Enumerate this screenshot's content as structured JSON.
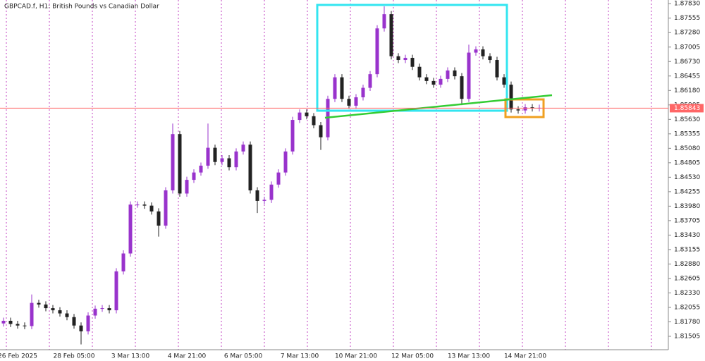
{
  "chart_data": {
    "type": "candlestick",
    "title": "GBPCAD.f, H1:  British Pounds vs Canadian Dollar",
    "categories": [
      null,
      null,
      "26 Feb 2025",
      null,
      null,
      null,
      null,
      null,
      null,
      null,
      "28 Feb 05:00",
      null,
      null,
      null,
      null,
      null,
      null,
      null,
      "3 Mar 13:00",
      null,
      null,
      null,
      null,
      null,
      null,
      null,
      "4 Mar 21:00",
      null,
      null,
      null,
      null,
      null,
      null,
      null,
      "6 Mar 05:00",
      null,
      null,
      null,
      null,
      null,
      null,
      null,
      "7 Mar 13:00",
      null,
      null,
      null,
      null,
      null,
      null,
      null,
      "10 Mar 21:00",
      null,
      null,
      null,
      null,
      null,
      null,
      null,
      "12 Mar 05:00",
      null,
      null,
      null,
      null,
      null,
      null,
      null,
      "13 Mar 13:00",
      null,
      null,
      null,
      null,
      null,
      null,
      null,
      "14 Mar 21:00",
      null,
      null
    ],
    "open": [
      1.8175,
      1.818,
      1.8174,
      1.8171,
      1.817,
      1.8214,
      1.8211,
      1.8204,
      1.82,
      1.8194,
      1.8187,
      1.8171,
      1.816,
      1.819,
      1.8203,
      1.8204,
      1.82,
      1.8274,
      1.8308,
      1.8401,
      1.8401,
      1.8399,
      1.8388,
      1.8361,
      1.8428,
      1.8535,
      1.8422,
      1.8448,
      1.8462,
      1.8475,
      1.8509,
      1.8482,
      1.8489,
      1.8472,
      1.8502,
      1.8515,
      1.8428,
      1.8408,
      1.841,
      1.8439,
      1.8462,
      1.8502,
      1.8562,
      1.8576,
      1.8569,
      1.8552,
      1.8529,
      1.8602,
      1.8643,
      1.8602,
      1.8589,
      1.8605,
      1.8623,
      1.8649,
      1.8736,
      1.8763,
      1.8683,
      1.8676,
      1.868,
      1.8663,
      1.8643,
      1.8636,
      1.8629,
      1.864,
      1.8656,
      1.8645,
      1.8602,
      1.869,
      1.8696,
      1.8683,
      1.8676,
      1.8643,
      1.8629,
      1.8582,
      1.858,
      1.8586,
      1.8584
    ],
    "high": [
      1.8186,
      1.8186,
      1.818,
      1.8177,
      1.823,
      1.822,
      1.8217,
      1.821,
      1.8206,
      1.82,
      1.8193,
      1.8177,
      1.8196,
      1.8209,
      1.821,
      1.821,
      1.828,
      1.8314,
      1.8407,
      1.8407,
      1.8407,
      1.8405,
      1.8394,
      1.8434,
      1.8555,
      1.8541,
      1.8454,
      1.8468,
      1.8481,
      1.8555,
      1.8515,
      1.8495,
      1.8495,
      1.8508,
      1.8521,
      1.8521,
      1.8434,
      1.8416,
      1.8445,
      1.8468,
      1.8508,
      1.8568,
      1.8582,
      1.8582,
      1.8575,
      1.8558,
      1.8608,
      1.8649,
      1.8649,
      1.8608,
      1.8611,
      1.8629,
      1.8655,
      1.8742,
      1.8778,
      1.8769,
      1.8689,
      1.8686,
      1.8686,
      1.8669,
      1.8649,
      1.8642,
      1.8646,
      1.8662,
      1.8662,
      1.8651,
      1.8705,
      1.8702,
      1.8702,
      1.8689,
      1.8682,
      1.8649,
      1.8635,
      1.8588,
      1.8592,
      1.8592,
      1.8591
    ],
    "low": [
      1.8169,
      1.8168,
      1.8165,
      1.8164,
      1.8164,
      1.8205,
      1.8198,
      1.8194,
      1.8188,
      1.8181,
      1.8165,
      1.8135,
      1.8154,
      1.8184,
      1.8197,
      1.8194,
      1.8194,
      1.8268,
      1.8302,
      1.8395,
      1.8393,
      1.8382,
      1.834,
      1.8355,
      1.8422,
      1.8416,
      1.8416,
      1.8442,
      1.8456,
      1.8469,
      1.8476,
      1.8476,
      1.8466,
      1.8466,
      1.8496,
      1.8422,
      1.8385,
      1.8402,
      1.8404,
      1.8433,
      1.8456,
      1.8496,
      1.8556,
      1.8563,
      1.8546,
      1.8505,
      1.8523,
      1.8596,
      1.8596,
      1.8583,
      1.8583,
      1.8599,
      1.8617,
      1.8643,
      1.873,
      1.8677,
      1.867,
      1.867,
      1.8657,
      1.8637,
      1.863,
      1.8623,
      1.8623,
      1.8634,
      1.8639,
      1.859,
      1.8596,
      1.8684,
      1.8677,
      1.867,
      1.8637,
      1.8623,
      1.8576,
      1.8574,
      1.8574,
      1.8578,
      1.8578
    ],
    "close": [
      1.818,
      1.8174,
      1.8171,
      1.817,
      1.8214,
      1.8211,
      1.8204,
      1.82,
      1.8194,
      1.8187,
      1.8171,
      1.816,
      1.819,
      1.8203,
      1.8204,
      1.82,
      1.8274,
      1.8308,
      1.8401,
      1.8401,
      1.8399,
      1.8388,
      1.8361,
      1.8428,
      1.8535,
      1.8422,
      1.8448,
      1.8462,
      1.8475,
      1.8509,
      1.8482,
      1.8489,
      1.8472,
      1.8502,
      1.8515,
      1.8428,
      1.8408,
      1.841,
      1.8439,
      1.8462,
      1.8502,
      1.8562,
      1.8576,
      1.8569,
      1.8552,
      1.8529,
      1.8602,
      1.8643,
      1.8602,
      1.8589,
      1.8605,
      1.8623,
      1.8649,
      1.8736,
      1.8763,
      1.8683,
      1.8676,
      1.868,
      1.8663,
      1.8643,
      1.8636,
      1.8629,
      1.864,
      1.8656,
      1.8645,
      1.8602,
      1.869,
      1.8696,
      1.8683,
      1.8676,
      1.8643,
      1.8629,
      1.8582,
      1.858,
      1.8586,
      1.8584,
      1.8585
    ],
    "up_color": "#9933cc",
    "down_color": "#222222",
    "ylim": [
      1.8125,
      1.879
    ],
    "yticks": [
      {
        "value": 1.8783,
        "label": "1.87830"
      },
      1.87555,
      {
        "value": 1.8728,
        "label": "1.87280"
      },
      1.87005,
      {
        "value": 1.8673,
        "label": "1.86730"
      },
      1.86455,
      {
        "value": 1.8618,
        "label": "1.86180"
      },
      1.85905,
      {
        "value": 1.8563,
        "label": "1.85630"
      },
      1.85355,
      {
        "value": 1.8508,
        "label": "1.85080"
      },
      1.84805,
      {
        "value": 1.8453,
        "label": "1.84530"
      },
      1.84255,
      {
        "value": 1.8398,
        "label": "1.83980"
      },
      1.83705,
      {
        "value": 1.8343,
        "label": "1.83430"
      },
      1.83155,
      {
        "value": 1.8288,
        "label": "1.82880"
      },
      1.82605,
      {
        "value": 1.8233,
        "label": "1.82330"
      },
      1.82055,
      {
        "value": 1.8178,
        "label": "1.81780"
      },
      1.81505
    ],
    "current_price": 1.85843,
    "price_line_color": "#ff6666"
  }
}
